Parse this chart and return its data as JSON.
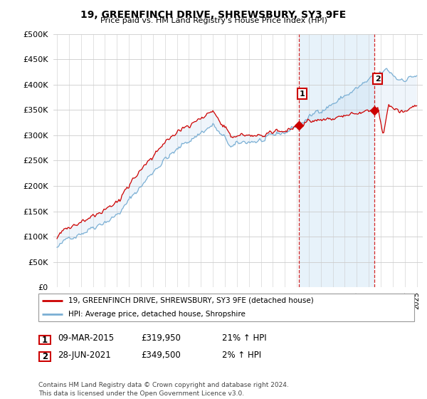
{
  "title": "19, GREENFINCH DRIVE, SHREWSBURY, SY3 9FE",
  "subtitle": "Price paid vs. HM Land Registry's House Price Index (HPI)",
  "legend_line1": "19, GREENFINCH DRIVE, SHREWSBURY, SY3 9FE (detached house)",
  "legend_line2": "HPI: Average price, detached house, Shropshire",
  "sale1_label": "1",
  "sale1_date": "09-MAR-2015",
  "sale1_price": "£319,950",
  "sale1_hpi": "21% ↑ HPI",
  "sale1_year": 2015.18,
  "sale1_value": 319950,
  "sale2_label": "2",
  "sale2_date": "28-JUN-2021",
  "sale2_price": "£349,500",
  "sale2_hpi": "2% ↑ HPI",
  "sale2_year": 2021.49,
  "sale2_value": 349500,
  "footer": "Contains HM Land Registry data © Crown copyright and database right 2024.\nThis data is licensed under the Open Government Licence v3.0.",
  "red_color": "#cc0000",
  "blue_color": "#7aafd4",
  "fill_color": "#ddeeff",
  "background_color": "#ffffff",
  "grid_color": "#cccccc",
  "ylim_max": 500000,
  "xlim_start": 1994.7,
  "xlim_end": 2025.5
}
